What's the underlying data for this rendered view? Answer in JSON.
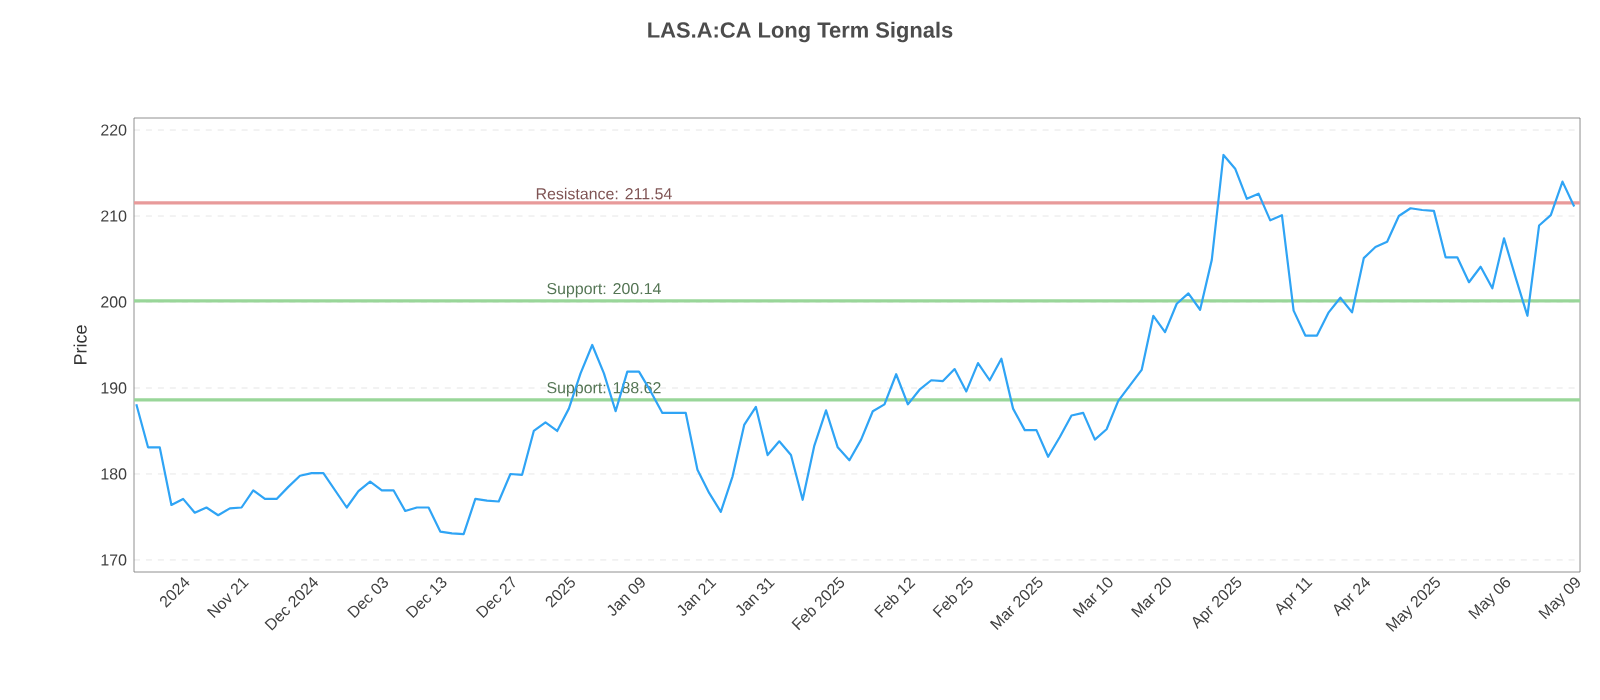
{
  "chart_data": {
    "type": "line",
    "title": "LAS.A:CA Long Term Signals",
    "ylabel": "Price",
    "categories": [
      null,
      null,
      null,
      null,
      "2024",
      null,
      null,
      null,
      null,
      "Nov 21",
      null,
      null,
      null,
      null,
      null,
      "Dec 2024",
      null,
      null,
      null,
      null,
      null,
      "Dec 03",
      null,
      null,
      null,
      null,
      "Dec 13",
      null,
      null,
      null,
      null,
      null,
      "Dec 27",
      null,
      null,
      null,
      null,
      "2025",
      null,
      null,
      null,
      null,
      null,
      "Jan 09",
      null,
      null,
      null,
      null,
      null,
      "Jan 21",
      null,
      null,
      null,
      null,
      "Jan 31",
      null,
      null,
      null,
      null,
      null,
      "Feb 2025",
      null,
      null,
      null,
      null,
      null,
      "Feb 12",
      null,
      null,
      null,
      null,
      "Feb 25",
      null,
      null,
      null,
      null,
      null,
      "Mar 2025",
      null,
      null,
      null,
      null,
      null,
      "Mar 10",
      null,
      null,
      null,
      null,
      "Mar 20",
      null,
      null,
      null,
      null,
      null,
      "Apr 2025",
      null,
      null,
      null,
      null,
      null,
      "Apr 11",
      null,
      null,
      null,
      null,
      "Apr 24",
      null,
      null,
      null,
      null,
      null,
      "May 2025",
      null,
      null,
      null,
      null,
      null,
      "May 06",
      null,
      null,
      null,
      null,
      null,
      "May 09"
    ],
    "series": [
      {
        "color": "#2fa4f5",
        "values": [
          188.1,
          183.1,
          183.1,
          176.4,
          177.1,
          175.5,
          176.1,
          175.2,
          176.0,
          176.1,
          178.1,
          177.1,
          177.1,
          178.5,
          179.8,
          180.1,
          180.1,
          178.1,
          176.1,
          178.0,
          179.1,
          178.1,
          178.1,
          175.7,
          176.1,
          176.1,
          173.3,
          173.1,
          173.0,
          177.1,
          176.9,
          176.8,
          180.0,
          179.9,
          185.0,
          186.0,
          185.0,
          187.6,
          191.7,
          195.0,
          191.7,
          187.3,
          191.9,
          191.9,
          189.6,
          187.1,
          187.1,
          187.1,
          180.5,
          177.8,
          175.6,
          179.7,
          185.7,
          187.8,
          182.2,
          183.8,
          182.2,
          177.0,
          183.3,
          187.4,
          183.1,
          181.6,
          184.0,
          187.3,
          188.1,
          191.6,
          188.1,
          189.8,
          190.9,
          190.8,
          192.2,
          189.6,
          192.9,
          190.9,
          193.4,
          187.6,
          185.1,
          185.1,
          182.0,
          184.3,
          186.8,
          187.1,
          184.0,
          185.2,
          188.5,
          190.3,
          192.1,
          198.4,
          196.5,
          199.8,
          201.0,
          199.1,
          204.9,
          217.1,
          215.5,
          212.0,
          212.6,
          209.5,
          210.1,
          199.0,
          196.1,
          196.1,
          198.8,
          200.5,
          198.8,
          205.1,
          206.4,
          207.0,
          210.0,
          210.9,
          210.7,
          210.6,
          205.2,
          205.2,
          202.3,
          204.1,
          201.6,
          207.4,
          202.8,
          198.4,
          208.9,
          210.1,
          214.0,
          211.1
        ]
      }
    ],
    "ylim": [
      168.6,
      221.4
    ],
    "yticks": [
      170,
      180,
      190,
      200,
      210,
      220
    ],
    "grid": "y",
    "marker": "none",
    "line_style": "solid",
    "ref_lines": [
      {
        "axis": "y",
        "value": 211.54,
        "label": "Resistance: 211.54",
        "color": "#e89a9a"
      },
      {
        "axis": "y",
        "value": 200.14,
        "label": "Support: 200.14",
        "color": "#99d699"
      },
      {
        "axis": "y",
        "value": 188.62,
        "label": "Support: 188.62",
        "color": "#99d699"
      }
    ]
  }
}
